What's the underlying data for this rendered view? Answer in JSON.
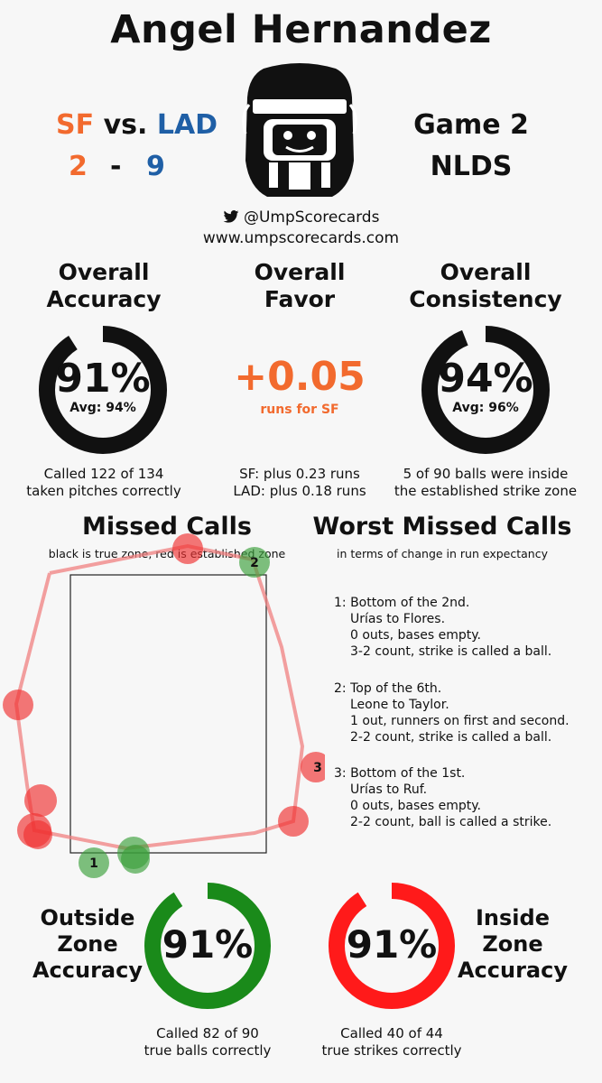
{
  "title": "Angel Hernandez",
  "matchup": {
    "team_away": "SF",
    "vs": "vs.",
    "team_home": "LAD",
    "score_away": "2",
    "dash": "-",
    "score_home": "9"
  },
  "game": {
    "line1": "Game 2",
    "line2": "NLDS"
  },
  "social": {
    "handle": "@UmpScorecards",
    "website": "www.umpscorecards.com"
  },
  "accuracy": {
    "title_line1": "Overall",
    "title_line2": "Accuracy",
    "value": "91%",
    "avg": "Avg: 94%",
    "fill_fraction": 0.91,
    "caption_line1": "Called 122 of 134",
    "caption_line2": "taken pitches correctly"
  },
  "favor": {
    "title_line1": "Overall",
    "title_line2": "Favor",
    "value": "+0.05",
    "sub": "runs for SF",
    "caption_line1": "SF: plus 0.23 runs",
    "caption_line2": "LAD: plus 0.18 runs"
  },
  "consistency": {
    "title_line1": "Overall",
    "title_line2": "Consistency",
    "value": "94%",
    "avg": "Avg: 96%",
    "fill_fraction": 0.94,
    "caption_line1": "5 of 90 balls were inside",
    "caption_line2": "the established strike zone"
  },
  "missed_calls": {
    "title": "Missed Calls",
    "subtitle": "black is true zone, red is established zone",
    "labels": [
      "1",
      "2",
      "3"
    ]
  },
  "worst_calls": {
    "title": "Worst Missed Calls",
    "subtitle": "in terms of change in run expectancy",
    "items": [
      {
        "line1": "1: Bottom of the 2nd.",
        "line2": "Urías to Flores.",
        "line3": "0 outs, bases empty.",
        "line4": "3-2 count, strike is called a ball."
      },
      {
        "line1": "2: Top of the 6th.",
        "line2": "Leone to Taylor.",
        "line3": "1 out, runners on first and second.",
        "line4": "2-2 count, strike is called a ball."
      },
      {
        "line1": "3: Bottom of the 1st.",
        "line2": "Urías to Ruf.",
        "line3": "0 outs, bases empty.",
        "line4": "2-2 count, ball is called a strike."
      }
    ]
  },
  "outside_zone": {
    "label_line1": "Outside",
    "label_line2": "Zone",
    "label_line3": "Accuracy",
    "value": "91%",
    "fill_fraction": 0.91,
    "color": "#1a8a1a",
    "caption_line1": "Called 82 of 90",
    "caption_line2": "true balls correctly"
  },
  "inside_zone": {
    "label_line1": "Inside",
    "label_line2": "Zone",
    "label_line3": "Accuracy",
    "value": "91%",
    "fill_fraction": 0.91,
    "color": "#ff1a1a",
    "caption_line1": "Called 40 of 44",
    "caption_line2": "true strikes correctly"
  }
}
